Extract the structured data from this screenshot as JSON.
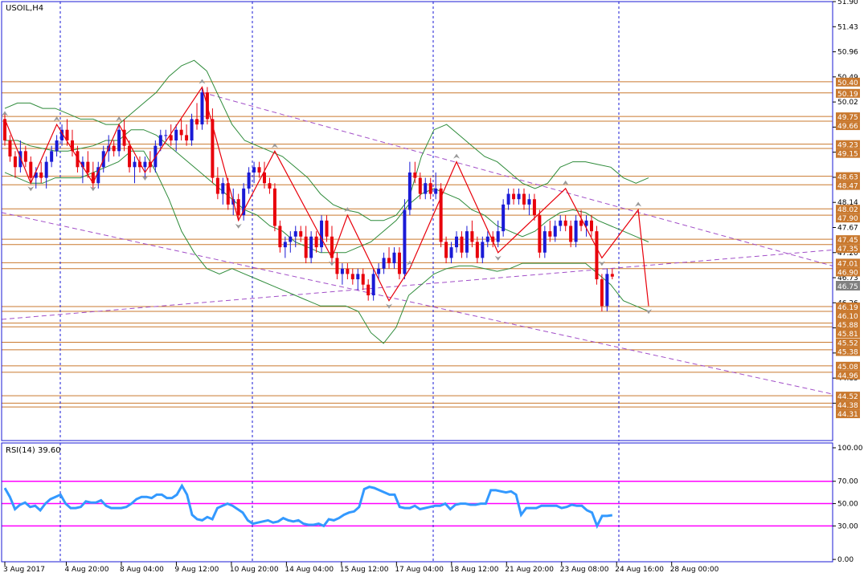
{
  "colors": {
    "background": "#ffffff",
    "bull": "#1a1ad6",
    "bear": "#e8000b",
    "grid": "#1a1ad6",
    "frame": "#1a1ad6",
    "hline": "#c9792f",
    "hline_label_bg": "#c9792f",
    "price_label_bg": "#808080",
    "bollinger": "#2e8b3a",
    "zigzag": "#e8000b",
    "trend": "#a24fc8",
    "rsi": "#3399ff",
    "rsi_level": "#ff00ff",
    "arrow": "#999999"
  },
  "chart_data": [
    {
      "type": "candlestick",
      "title": "USOIL,H4",
      "ylim": [
        43.68,
        51.9
      ],
      "y_ticks": [
        51.9,
        51.43,
        50.96,
        50.49,
        50.02,
        49.55,
        49.08,
        48.61,
        48.14,
        47.67,
        47.2,
        46.73,
        46.26,
        45.79,
        45.32,
        44.85,
        44.38
      ],
      "x_tick_labels": [
        "3 Aug 2017",
        "4 Aug 20:00",
        "8 Aug 04:00",
        "9 Aug 12:00",
        "10 Aug 20:00",
        "14 Aug 04:00",
        "15 Aug 12:00",
        "17 Aug 04:00",
        "18 Aug 12:00",
        "21 Aug 20:00",
        "23 Aug 08:00",
        "24 Aug 16:00",
        "28 Aug 00:00"
      ],
      "current_price": "46.75",
      "levels": [
        "50.40",
        "50.19",
        "49.75",
        "49.66",
        "49.23",
        "49.15",
        "48.63",
        "48.47",
        "48.02",
        "47.90",
        "47.45",
        "47.35",
        "47.01",
        "46.90",
        "46.19",
        "46.10",
        "45.88",
        "45.81",
        "45.52",
        "45.38",
        "45.08",
        "44.96",
        "44.52",
        "44.38",
        "44.31"
      ],
      "candles": [
        [
          49.7,
          49.8,
          49.2,
          49.3
        ],
        [
          49.3,
          49.4,
          48.9,
          49.0
        ],
        [
          49.0,
          49.1,
          48.6,
          48.8
        ],
        [
          48.8,
          49.3,
          48.7,
          49.1
        ],
        [
          49.1,
          49.2,
          48.8,
          48.9
        ],
        [
          48.9,
          49.0,
          48.5,
          48.6
        ],
        [
          48.6,
          48.8,
          48.4,
          48.7
        ],
        [
          48.7,
          48.9,
          48.5,
          48.6
        ],
        [
          48.6,
          49.0,
          48.4,
          48.9
        ],
        [
          48.9,
          49.2,
          48.8,
          49.1
        ],
        [
          49.1,
          49.4,
          49.0,
          49.3
        ],
        [
          49.3,
          49.6,
          49.2,
          49.5
        ],
        [
          49.5,
          49.7,
          49.2,
          49.3
        ],
        [
          49.3,
          49.5,
          49.0,
          49.1
        ],
        [
          49.1,
          49.2,
          48.7,
          48.8
        ],
        [
          48.8,
          49.0,
          48.5,
          48.9
        ],
        [
          48.9,
          49.1,
          48.6,
          48.7
        ],
        [
          48.7,
          48.9,
          48.4,
          48.5
        ],
        [
          48.5,
          48.9,
          48.4,
          48.8
        ],
        [
          48.8,
          49.2,
          48.7,
          49.1
        ],
        [
          49.1,
          49.4,
          48.9,
          49.2
        ],
        [
          49.2,
          49.3,
          49.0,
          49.1
        ],
        [
          49.1,
          49.6,
          49.0,
          49.5
        ],
        [
          49.5,
          49.7,
          49.1,
          49.2
        ],
        [
          49.2,
          49.3,
          48.7,
          48.8
        ],
        [
          48.8,
          49.0,
          48.5,
          48.9
        ],
        [
          48.9,
          49.0,
          48.7,
          48.8
        ],
        [
          48.8,
          49.0,
          48.6,
          48.9
        ],
        [
          48.9,
          49.1,
          48.7,
          48.8
        ],
        [
          48.8,
          49.3,
          48.7,
          49.2
        ],
        [
          49.2,
          49.5,
          49.1,
          49.4
        ],
        [
          49.4,
          49.5,
          49.3,
          49.4
        ],
        [
          49.4,
          49.6,
          49.2,
          49.3
        ],
        [
          49.3,
          49.6,
          49.1,
          49.5
        ],
        [
          49.5,
          49.7,
          49.3,
          49.4
        ],
        [
          49.4,
          49.6,
          49.2,
          49.3
        ],
        [
          49.3,
          49.8,
          49.2,
          49.7
        ],
        [
          49.7,
          50.0,
          49.5,
          49.6
        ],
        [
          49.6,
          50.3,
          49.5,
          50.2
        ],
        [
          50.2,
          50.3,
          49.6,
          49.7
        ],
        [
          49.7,
          49.9,
          48.5,
          48.6
        ],
        [
          48.6,
          48.8,
          48.2,
          48.3
        ],
        [
          48.3,
          48.6,
          48.1,
          48.5
        ],
        [
          48.5,
          48.6,
          48.0,
          48.1
        ],
        [
          48.1,
          48.4,
          47.9,
          48.2
        ],
        [
          48.2,
          48.3,
          47.8,
          47.9
        ],
        [
          47.9,
          48.5,
          47.8,
          48.4
        ],
        [
          48.4,
          48.8,
          48.3,
          48.7
        ],
        [
          48.7,
          48.9,
          48.5,
          48.8
        ],
        [
          48.8,
          48.9,
          48.6,
          48.7
        ],
        [
          48.7,
          48.9,
          48.4,
          48.5
        ],
        [
          48.5,
          48.6,
          48.3,
          48.4
        ],
        [
          48.4,
          48.5,
          47.6,
          47.7
        ],
        [
          47.7,
          47.8,
          47.2,
          47.3
        ],
        [
          47.3,
          47.5,
          47.1,
          47.4
        ],
        [
          47.4,
          47.6,
          47.2,
          47.5
        ],
        [
          47.5,
          47.7,
          47.3,
          47.6
        ],
        [
          47.6,
          47.7,
          47.4,
          47.5
        ],
        [
          47.5,
          47.7,
          47.0,
          47.1
        ],
        [
          47.1,
          47.6,
          47.0,
          47.5
        ],
        [
          47.5,
          47.6,
          47.2,
          47.3
        ],
        [
          47.3,
          47.9,
          47.2,
          47.8
        ],
        [
          47.8,
          47.9,
          47.4,
          47.5
        ],
        [
          47.5,
          47.7,
          47.0,
          47.1
        ],
        [
          47.1,
          47.2,
          46.7,
          46.8
        ],
        [
          46.8,
          47.0,
          46.6,
          46.9
        ],
        [
          46.9,
          47.0,
          46.7,
          46.8
        ],
        [
          46.8,
          46.9,
          46.6,
          46.7
        ],
        [
          46.7,
          46.9,
          46.5,
          46.8
        ],
        [
          46.8,
          46.9,
          46.5,
          46.6
        ],
        [
          46.6,
          46.7,
          46.3,
          46.4
        ],
        [
          46.4,
          46.9,
          46.3,
          46.8
        ],
        [
          46.8,
          47.0,
          46.7,
          46.9
        ],
        [
          46.9,
          47.2,
          46.8,
          47.1
        ],
        [
          47.1,
          47.3,
          46.9,
          47.0
        ],
        [
          47.0,
          47.3,
          46.9,
          47.2
        ],
        [
          47.2,
          47.3,
          46.7,
          46.8
        ],
        [
          46.8,
          48.2,
          46.7,
          48.0
        ],
        [
          48.0,
          48.9,
          47.9,
          48.7
        ],
        [
          48.7,
          48.9,
          48.5,
          48.6
        ],
        [
          48.6,
          48.7,
          48.2,
          48.3
        ],
        [
          48.3,
          48.6,
          48.2,
          48.5
        ],
        [
          48.5,
          48.6,
          48.2,
          48.3
        ],
        [
          48.3,
          48.7,
          48.2,
          48.4
        ],
        [
          48.4,
          48.5,
          47.3,
          47.4
        ],
        [
          47.4,
          47.5,
          47.0,
          47.1
        ],
        [
          47.1,
          47.4,
          47.0,
          47.3
        ],
        [
          47.3,
          47.6,
          47.2,
          47.5
        ],
        [
          47.5,
          47.6,
          47.1,
          47.2
        ],
        [
          47.2,
          47.7,
          47.1,
          47.6
        ],
        [
          47.6,
          47.8,
          47.3,
          47.4
        ],
        [
          47.4,
          47.5,
          47.0,
          47.1
        ],
        [
          47.1,
          47.5,
          47.0,
          47.4
        ],
        [
          47.4,
          47.6,
          47.3,
          47.5
        ],
        [
          47.5,
          47.6,
          47.3,
          47.4
        ],
        [
          47.4,
          47.8,
          47.3,
          47.6
        ],
        [
          47.6,
          48.2,
          47.5,
          48.1
        ],
        [
          48.1,
          48.4,
          48.0,
          48.3
        ],
        [
          48.3,
          48.4,
          48.1,
          48.2
        ],
        [
          48.2,
          48.4,
          48.1,
          48.3
        ],
        [
          48.3,
          48.4,
          48.0,
          48.1
        ],
        [
          48.1,
          48.3,
          47.9,
          48.2
        ],
        [
          48.2,
          48.3,
          47.8,
          47.9
        ],
        [
          47.9,
          48.0,
          47.1,
          47.2
        ],
        [
          47.2,
          47.7,
          47.1,
          47.6
        ],
        [
          47.6,
          47.8,
          47.4,
          47.5
        ],
        [
          47.5,
          47.8,
          47.4,
          47.7
        ],
        [
          47.7,
          47.9,
          47.6,
          47.8
        ],
        [
          47.8,
          47.9,
          47.6,
          47.7
        ],
        [
          47.7,
          47.8,
          47.3,
          47.4
        ],
        [
          47.4,
          47.9,
          47.3,
          47.8
        ],
        [
          47.8,
          48.0,
          47.6,
          47.7
        ],
        [
          47.7,
          47.9,
          47.5,
          47.8
        ],
        [
          47.8,
          47.9,
          47.5,
          47.6
        ],
        [
          47.6,
          47.7,
          46.6,
          46.7
        ],
        [
          46.7,
          46.8,
          46.1,
          46.2
        ],
        [
          46.2,
          46.9,
          46.1,
          46.8
        ],
        [
          46.8,
          46.9,
          46.7,
          46.75
        ]
      ],
      "bollinger": {
        "upper": [
          49.9,
          50.0,
          50.0,
          49.9,
          49.9,
          49.8,
          49.7,
          49.7,
          49.6,
          49.6,
          49.8,
          50.0,
          50.2,
          50.5,
          50.7,
          50.8,
          50.6,
          50.1,
          49.6,
          49.3,
          49.2,
          49.1,
          49.0,
          48.8,
          48.6,
          48.3,
          48.1,
          48.0,
          47.95,
          47.8,
          47.8,
          47.9,
          48.2,
          49.0,
          49.5,
          49.6,
          49.4,
          49.2,
          49.0,
          48.9,
          48.7,
          48.5,
          48.4,
          48.5,
          48.8,
          48.9,
          48.9,
          48.85,
          48.8,
          48.6,
          48.5,
          48.6
        ],
        "middle": [
          49.3,
          49.3,
          49.2,
          49.15,
          49.1,
          49.1,
          49.15,
          49.2,
          49.3,
          49.3,
          49.5,
          49.5,
          49.4,
          49.2,
          49.0,
          48.8,
          48.6,
          48.4,
          48.2,
          48.0,
          47.9,
          47.7,
          47.6,
          47.4,
          47.3,
          47.2,
          47.2,
          47.2,
          47.3,
          47.4,
          47.6,
          47.8,
          48.1,
          48.3,
          48.4,
          48.3,
          48.2,
          48.0,
          47.9,
          47.7,
          47.6,
          47.5,
          47.6,
          47.8,
          47.95,
          48.0,
          47.95,
          47.8,
          47.7,
          47.6,
          47.5,
          47.4
        ],
        "lower": [
          48.7,
          48.6,
          48.5,
          48.5,
          48.6,
          48.6,
          48.6,
          48.7,
          48.8,
          48.9,
          49.1,
          49.1,
          48.7,
          48.2,
          47.6,
          47.2,
          46.9,
          46.8,
          46.9,
          46.8,
          46.7,
          46.6,
          46.5,
          46.4,
          46.3,
          46.2,
          46.2,
          46.2,
          46.1,
          45.7,
          45.5,
          45.8,
          46.4,
          46.6,
          46.8,
          46.9,
          46.95,
          46.95,
          46.9,
          46.85,
          46.9,
          47.0,
          47.0,
          47.0,
          47.0,
          47.0,
          47.0,
          46.8,
          46.6,
          46.3,
          46.2,
          46.1
        ]
      },
      "zigzag": [
        [
          0,
          49.7
        ],
        [
          5,
          48.5
        ],
        [
          10,
          49.6
        ],
        [
          17,
          48.5
        ],
        [
          22,
          49.6
        ],
        [
          27,
          48.7
        ],
        [
          38,
          50.3
        ],
        [
          45,
          47.8
        ],
        [
          52,
          49.1
        ],
        [
          63,
          47.1
        ],
        [
          66,
          47.9
        ],
        [
          74,
          46.3
        ],
        [
          78,
          46.9
        ],
        [
          87,
          48.9
        ],
        [
          95,
          47.2
        ],
        [
          108,
          48.4
        ],
        [
          115,
          47.1
        ],
        [
          122,
          48.0
        ],
        [
          124,
          46.2
        ]
      ],
      "bollinger_end_index": 124
    },
    {
      "type": "line",
      "title": "RSI(14) 39.60",
      "ylim": [
        0,
        100
      ],
      "y_ticks": [
        100.0,
        70.0,
        50.0,
        30.0,
        0.0
      ],
      "y_tick_labels": [
        "100.00",
        "70.00",
        "50.00",
        "30.00",
        "0.00"
      ],
      "levels": [
        70,
        50,
        30
      ],
      "values": [
        64,
        56,
        45,
        49,
        51,
        47,
        48,
        44,
        50,
        54,
        56,
        58,
        50,
        46,
        46,
        47,
        52,
        51,
        51,
        53,
        48,
        46,
        46,
        46,
        47,
        50,
        54,
        56,
        56,
        55,
        58,
        58,
        55,
        55,
        58,
        66,
        58,
        40,
        36,
        35,
        38,
        36,
        46,
        48,
        50,
        48,
        45,
        42,
        35,
        32,
        33,
        34,
        35,
        33,
        34,
        37,
        35,
        34,
        35,
        32,
        31,
        31,
        32,
        30,
        36,
        35,
        37,
        40,
        42,
        43,
        47,
        63,
        65,
        64,
        62,
        60,
        58,
        58,
        47,
        46,
        46,
        48,
        45,
        46,
        47,
        48,
        48,
        50,
        45,
        49,
        50,
        50,
        49,
        49,
        50,
        50,
        62,
        62,
        61,
        60,
        61,
        58,
        40,
        46,
        46,
        46,
        48,
        48,
        48,
        48,
        46,
        47,
        49,
        48,
        48,
        44,
        42,
        30,
        39,
        39,
        39.6
      ]
    }
  ]
}
